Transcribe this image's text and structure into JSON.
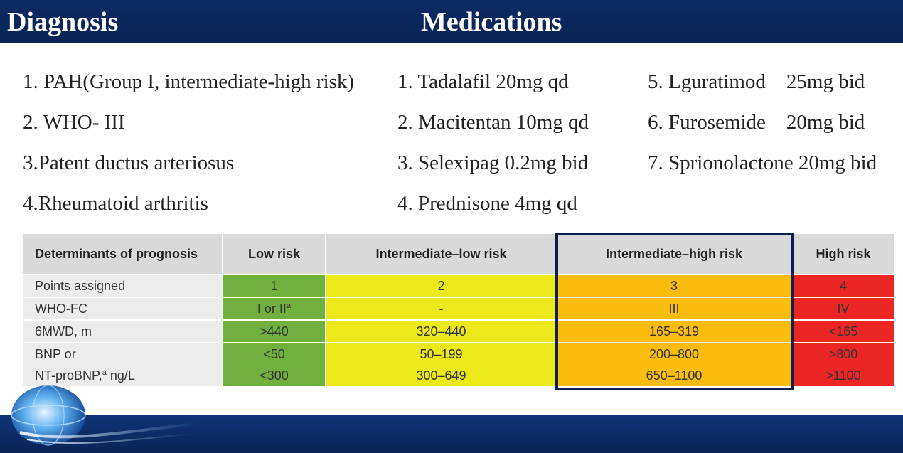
{
  "header": {
    "diagnosis_title": "Diagnosis",
    "medications_title": "Medications",
    "bar_color": "#0b2b63"
  },
  "diagnosis": [
    "1. PAH(Group I, intermediate-high risk)",
    "2. WHO- III",
    "3.Patent ductus arteriosus",
    "4.Rheumatoid arthritis"
  ],
  "medications_col1": [
    "1. Tadalafil 20mg qd",
    "2. Macitentan 10mg qd",
    "3. Selexipag 0.2mg bid",
    "4. Prednisone 4mg qd"
  ],
  "medications_col2": [
    "5. Lguratimod    25mg bid",
    "6. Furosemide    20mg bid",
    "7. Sprionolactone 20mg bid"
  ],
  "risk_table": {
    "headers": [
      "Determinants of prognosis",
      "Low risk",
      "Intermediate–low risk",
      "Intermediate–high risk",
      "High risk"
    ],
    "rows": [
      {
        "label": "Points assigned",
        "values": [
          "1",
          "2",
          "3",
          "4"
        ]
      },
      {
        "label": "WHO-FC",
        "label_sup": "",
        "values": [
          "I or II",
          "-",
          "III",
          "IV"
        ],
        "low_sup": "a"
      },
      {
        "label": "6MWD, m",
        "values": [
          ">440",
          "320–440",
          "165–319",
          "<165"
        ]
      },
      {
        "label": "BNP or",
        "values": [
          "<50",
          "50–199",
          "200–800",
          ">800"
        ]
      },
      {
        "label": "NT-proBNP,",
        "label_sup": "a",
        "label_suffix": " ng/L",
        "values": [
          "<300",
          "300–649",
          "650–1100",
          ">1100"
        ]
      }
    ],
    "highlighted_column": "Intermediate–high risk",
    "colors": {
      "low": "#6fb03f",
      "intermediate_low": "#ede819",
      "intermediate_high": "#fbbd0d",
      "high": "#ec2525"
    }
  },
  "logo_icon": "heart-globe-icon"
}
